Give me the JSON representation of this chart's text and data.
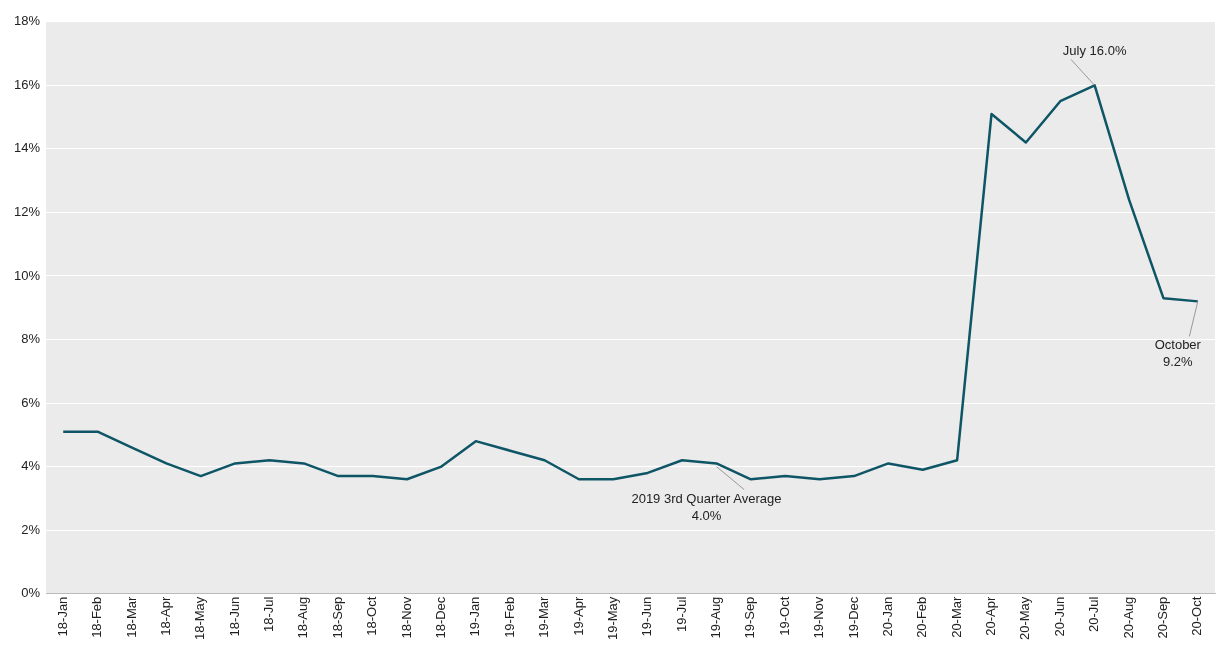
{
  "chart_data": {
    "type": "line",
    "categories": [
      "18-Jan",
      "18-Feb",
      "18-Mar",
      "18-Apr",
      "18-May",
      "18-Jun",
      "18-Jul",
      "18-Aug",
      "18-Sep",
      "18-Oct",
      "18-Nov",
      "18-Dec",
      "19-Jan",
      "19-Feb",
      "19-Mar",
      "19-Apr",
      "19-May",
      "19-Jun",
      "19-Jul",
      "19-Aug",
      "19-Sep",
      "19-Oct",
      "19-Nov",
      "19-Dec",
      "20-Jan",
      "20-Feb",
      "20-Mar",
      "20-Apr",
      "20-May",
      "20-Jun",
      "20-Jul",
      "20-Aug",
      "20-Sep",
      "20-Oct"
    ],
    "series": [
      {
        "color": "#0e5566",
        "values": [
          5.1,
          5.1,
          4.6,
          4.1,
          3.7,
          4.1,
          4.2,
          4.1,
          3.7,
          3.7,
          3.6,
          4.0,
          4.8,
          4.5,
          4.2,
          3.6,
          3.6,
          3.8,
          4.2,
          4.1,
          3.6,
          3.7,
          3.6,
          3.7,
          4.1,
          3.9,
          4.2,
          15.1,
          14.2,
          15.5,
          16.0,
          12.4,
          9.3,
          9.2
        ]
      }
    ],
    "ylim": [
      0,
      18
    ],
    "yticks": [
      {
        "value": 0,
        "label": "0%"
      },
      {
        "value": 2,
        "label": "2%"
      },
      {
        "value": 4,
        "label": "4%"
      },
      {
        "value": 6,
        "label": "6%"
      },
      {
        "value": 8,
        "label": "8%"
      },
      {
        "value": 10,
        "label": "10%"
      },
      {
        "value": 12,
        "label": "12%"
      },
      {
        "value": 14,
        "label": "14%"
      },
      {
        "value": 16,
        "label": "16%"
      },
      {
        "value": 18,
        "label": "18%"
      }
    ],
    "grid": "y",
    "marker": "none",
    "line_style": "solid",
    "legend": false,
    "annotations": [
      {
        "text": "July 16.0%",
        "x": "20-Jul",
        "y": 16.0
      },
      {
        "text": "2019 3rd Quarter Average\n4.0%",
        "x": "19-Aug",
        "y": 4.0
      },
      {
        "text": "October\n9.2%",
        "x": "20-Oct",
        "y": 9.2
      }
    ]
  }
}
